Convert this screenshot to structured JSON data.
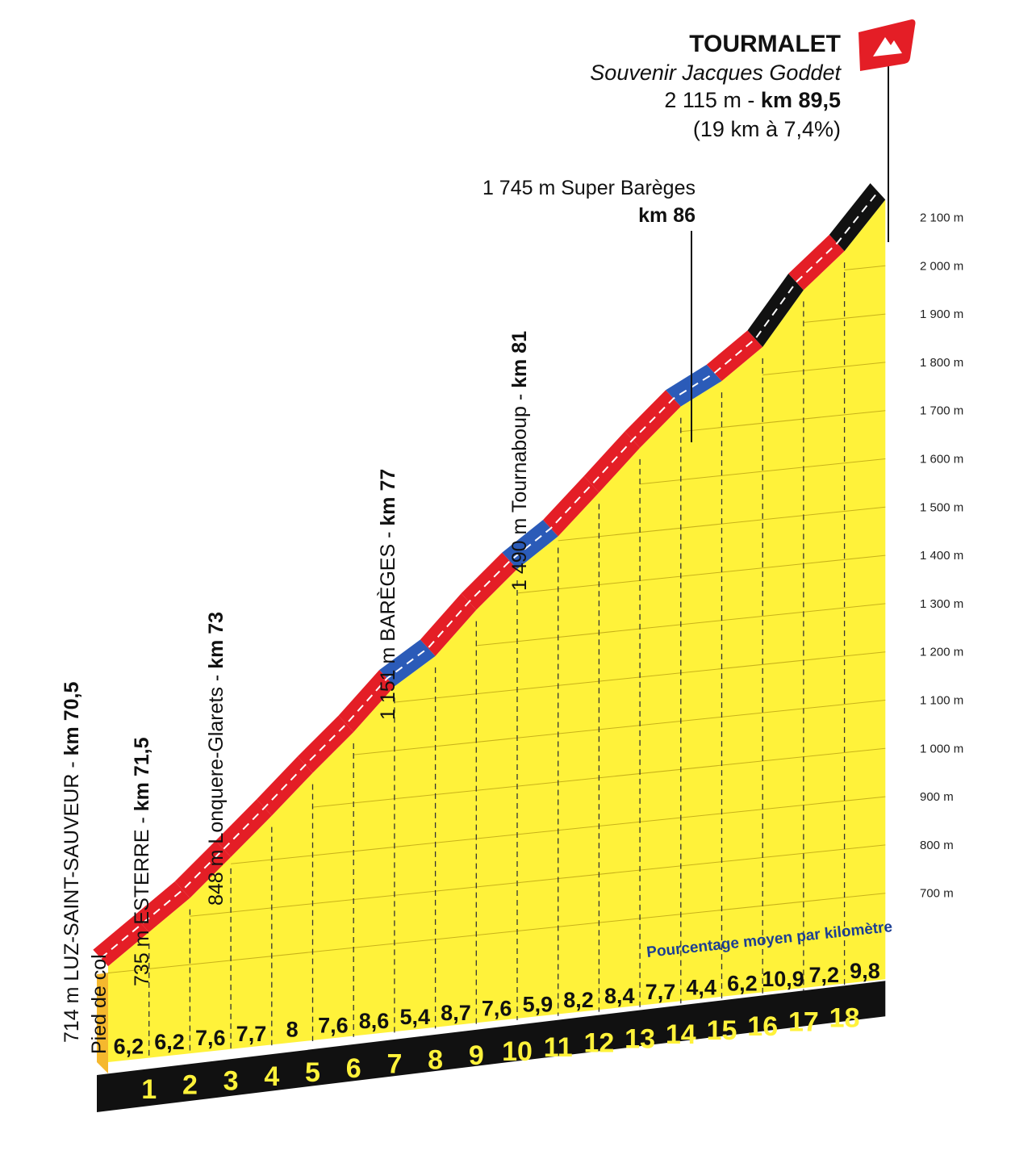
{
  "colors": {
    "profile_fill": "#fff23a",
    "profile_side": "#f5b82e",
    "base_band": "#111111",
    "km_number": "#fff23a",
    "grade_red": "#e41e26",
    "grade_blue": "#2b5bb8",
    "grade_black": "#111111",
    "legend_text": "#1c3f93",
    "summit_flag": "#e41e26"
  },
  "chart_data": {
    "type": "area",
    "title": "TOURMALET",
    "subtitle": "Souvenir Jacques Goddet",
    "summit_line1_plain": "2 115 m - ",
    "summit_line1_bold": "km 89,5",
    "summit_line2": "(19 km à 7,4%)",
    "y_unit": "m",
    "ylim": [
      600,
      2115
    ],
    "y_ticks": [
      {
        "value": 700,
        "label": "700 m"
      },
      {
        "value": 800,
        "label": "800 m"
      },
      {
        "value": 900,
        "label": "900 m"
      },
      {
        "value": 1000,
        "label": "1 000 m"
      },
      {
        "value": 1100,
        "label": "1 100 m"
      },
      {
        "value": 1200,
        "label": "1 200 m"
      },
      {
        "value": 1300,
        "label": "1 300 m"
      },
      {
        "value": 1400,
        "label": "1 400 m"
      },
      {
        "value": 1500,
        "label": "1 500 m"
      },
      {
        "value": 1600,
        "label": "1 600 m"
      },
      {
        "value": 1700,
        "label": "1 700 m"
      },
      {
        "value": 1800,
        "label": "1 800 m"
      },
      {
        "value": 1900,
        "label": "1 900 m"
      },
      {
        "value": 2000,
        "label": "2 000 m"
      },
      {
        "value": 2100,
        "label": "2 100 m"
      }
    ],
    "km_labels": [
      "1",
      "2",
      "3",
      "4",
      "5",
      "6",
      "7",
      "8",
      "9",
      "10",
      "11",
      "12",
      "13",
      "14",
      "15",
      "16",
      "17",
      "18"
    ],
    "segments": [
      {
        "km": 1,
        "grade": 6.2,
        "label": "6,2",
        "color": "red"
      },
      {
        "km": 2,
        "grade": 6.2,
        "label": "6,2",
        "color": "red"
      },
      {
        "km": 3,
        "grade": 7.6,
        "label": "7,6",
        "color": "red"
      },
      {
        "km": 4,
        "grade": 7.7,
        "label": "7,7",
        "color": "red"
      },
      {
        "km": 5,
        "grade": 8,
        "label": "8",
        "color": "red"
      },
      {
        "km": 6,
        "grade": 7.6,
        "label": "7,6",
        "color": "red"
      },
      {
        "km": 7,
        "grade": 8.6,
        "label": "8,6",
        "color": "red"
      },
      {
        "km": 8,
        "grade": 5.4,
        "label": "5,4",
        "color": "blue"
      },
      {
        "km": 9,
        "grade": 8.7,
        "label": "8,7",
        "color": "red"
      },
      {
        "km": 10,
        "grade": 7.6,
        "label": "7,6",
        "color": "red"
      },
      {
        "km": 11,
        "grade": 5.9,
        "label": "5,9",
        "color": "blue"
      },
      {
        "km": 12,
        "grade": 8.2,
        "label": "8,2",
        "color": "red"
      },
      {
        "km": 13,
        "grade": 8.4,
        "label": "8,4",
        "color": "red"
      },
      {
        "km": 14,
        "grade": 7.7,
        "label": "7,7",
        "color": "red"
      },
      {
        "km": 15,
        "grade": 4.4,
        "label": "4,4",
        "color": "blue"
      },
      {
        "km": 16,
        "grade": 6.2,
        "label": "6,2",
        "color": "red"
      },
      {
        "km": 17,
        "grade": 10.9,
        "label": "10,9",
        "color": "black"
      },
      {
        "km": 18,
        "grade": 7.2,
        "label": "7,2",
        "color": "red"
      },
      {
        "km": 19,
        "grade": 9.8,
        "label": "9,8",
        "color": "black"
      }
    ],
    "start_altitude": 714,
    "legend": "Pourcentage moyen par kilomètre",
    "annotations": [
      {
        "plain": "714 m LUZ-SAINT-SAUVEUR - ",
        "bold": "km 70,5",
        "sub": "Pied de col"
      },
      {
        "plain": "735 m ESTERRE - ",
        "bold": "km 71,5"
      },
      {
        "plain": "848 m Lonquere-Glarets - ",
        "bold": "km 73"
      },
      {
        "plain": "1 151 m BARÈGES - ",
        "bold": "km 77"
      },
      {
        "plain": "1 490 m Tournaboup - ",
        "bold": "km 81"
      },
      {
        "plain": "1 745 m Super Barèges",
        "bold": "km 86"
      }
    ]
  }
}
